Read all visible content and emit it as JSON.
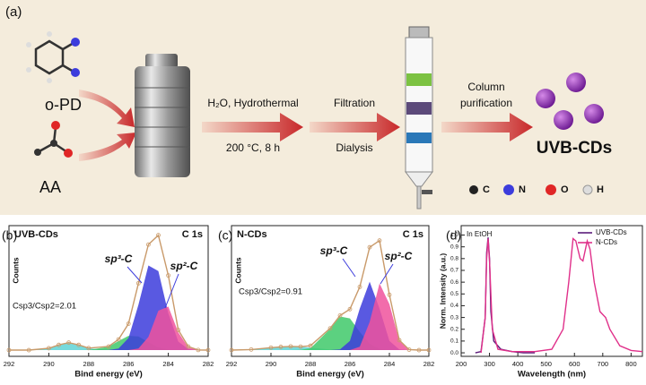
{
  "schematic": {
    "panel_label": "(a)",
    "reactants": [
      "o-PD",
      "AA"
    ],
    "step1": [
      "H₂O, Hydrothermal",
      "200 °C, 8 h"
    ],
    "step2": [
      "Filtration",
      "Dialysis"
    ],
    "step3": [
      "Column",
      "purification"
    ],
    "product": "UVB-CDs",
    "legend": [
      "C",
      "N",
      "O",
      "H"
    ]
  },
  "chart_data": [
    {
      "type": "line",
      "panel_label": "(b)",
      "title": "UVB-CDs",
      "subtitle": "C 1s",
      "xlabel": "Bind energy (eV)",
      "ylabel": "Counts",
      "ratio_label": "Csp3/Csp2=2.01",
      "annotations": [
        "sp³-C",
        "sp²-C"
      ],
      "x": [
        292,
        291,
        290,
        289.5,
        289,
        288.5,
        288,
        287,
        286.5,
        286,
        285.5,
        285,
        284.5,
        284,
        283.5,
        283,
        282.5,
        282
      ],
      "xlim": [
        292,
        282
      ],
      "xticks": [
        292,
        290,
        288,
        286,
        284,
        282
      ],
      "ylim": [
        0,
        1.05
      ],
      "series": [
        {
          "color": "#5fd3d6",
          "fill": true,
          "values": [
            0.05,
            0.05,
            0.065,
            0.092,
            0.11,
            0.092,
            0.065,
            0.05,
            0.05,
            0.05,
            0.05,
            0.05,
            0.05,
            0.05,
            0.05,
            0.05,
            0.05,
            0.05
          ]
        },
        {
          "color": "#3fc96a",
          "fill": true,
          "values": [
            0.05,
            0.05,
            0.05,
            0.05,
            0.05,
            0.05,
            0.051,
            0.078,
            0.123,
            0.165,
            0.16,
            0.113,
            0.071,
            0.054,
            0.05,
            0.05,
            0.05,
            0.05
          ]
        },
        {
          "color": "#3c3cdc",
          "fill": true,
          "values": [
            0.05,
            0.05,
            0.05,
            0.05,
            0.05,
            0.05,
            0.05,
            0.051,
            0.063,
            0.147,
            0.414,
            0.73,
            0.685,
            0.346,
            0.119,
            0.058,
            0.05,
            0.05
          ]
        },
        {
          "color": "#f0529c",
          "fill": true,
          "values": [
            0.05,
            0.05,
            0.05,
            0.05,
            0.05,
            0.05,
            0.05,
            0.05,
            0.05,
            0.05,
            0.063,
            0.155,
            0.367,
            0.4,
            0.193,
            0.071,
            0.051,
            0.05
          ]
        },
        {
          "color": "#c99a6a",
          "markers": true,
          "values": [
            0.05,
            0.05,
            0.065,
            0.092,
            0.11,
            0.092,
            0.066,
            0.079,
            0.136,
            0.262,
            0.587,
            0.898,
            0.973,
            0.65,
            0.212,
            0.079,
            0.051,
            0.05
          ]
        }
      ]
    },
    {
      "type": "line",
      "panel_label": "(c)",
      "title": "N-CDs",
      "subtitle": "C 1s",
      "xlabel": "Bind energy (eV)",
      "ylabel": "Counts",
      "ratio_label": "Csp3/Csp2=0.91",
      "annotations": [
        "sp³-C",
        "sp²-C"
      ],
      "x": [
        292,
        291,
        290,
        289.5,
        289,
        288.5,
        288,
        287,
        286.5,
        286,
        285.5,
        285,
        284.5,
        284,
        283.5,
        283,
        282.5,
        282
      ],
      "xlim": [
        292,
        282
      ],
      "xticks": [
        292,
        290,
        288,
        286,
        284,
        282
      ],
      "ylim": [
        0,
        1.05
      ],
      "series": [
        {
          "color": "#5fd3d6",
          "fill": true,
          "values": [
            0.05,
            0.055,
            0.07,
            0.076,
            0.08,
            0.076,
            0.07,
            0.055,
            0.052,
            0.05,
            0.05,
            0.05,
            0.05,
            0.05,
            0.05,
            0.05,
            0.05,
            0.05
          ]
        },
        {
          "color": "#3fc96a",
          "fill": true,
          "values": [
            0.05,
            0.05,
            0.05,
            0.05,
            0.05,
            0.052,
            0.065,
            0.22,
            0.32,
            0.305,
            0.196,
            0.1,
            0.06,
            0.05,
            0.05,
            0.05,
            0.05,
            0.05
          ]
        },
        {
          "color": "#3c3cdc",
          "fill": true,
          "values": [
            0.05,
            0.05,
            0.05,
            0.05,
            0.05,
            0.05,
            0.05,
            0.05,
            0.056,
            0.124,
            0.384,
            0.6,
            0.384,
            0.124,
            0.056,
            0.05,
            0.05,
            0.05
          ]
        },
        {
          "color": "#f0529c",
          "fill": true,
          "values": [
            0.05,
            0.05,
            0.05,
            0.05,
            0.05,
            0.05,
            0.05,
            0.05,
            0.05,
            0.05,
            0.078,
            0.276,
            0.586,
            0.42,
            0.124,
            0.054,
            0.05,
            0.05
          ]
        },
        {
          "color": "#c99a6a",
          "markers": true,
          "values": [
            0.05,
            0.055,
            0.07,
            0.076,
            0.08,
            0.078,
            0.085,
            0.225,
            0.328,
            0.379,
            0.558,
            0.876,
            0.93,
            0.494,
            0.13,
            0.054,
            0.05,
            0.05
          ]
        }
      ]
    },
    {
      "type": "line",
      "panel_label": "(d)",
      "title": "In EtOH",
      "xlabel": "Wavelength (nm)",
      "ylabel": "Norm. Intensity (a.u.)",
      "xlim": [
        200,
        840
      ],
      "xticks": [
        200,
        300,
        400,
        500,
        600,
        700,
        800
      ],
      "ylim": [
        -0.03,
        1.08
      ],
      "yticks": [
        {
          "value": 0,
          "label": "0.0"
        },
        0.1,
        0.2,
        0.3,
        0.4,
        0.5,
        0.6,
        0.7,
        0.8,
        0.9,
        {
          "value": 1,
          "label": "1.0"
        }
      ],
      "legend": "top-right",
      "series": [
        {
          "name": "UVB-CDs",
          "color": "#5b1b7a",
          "x": [
            250,
            270,
            285,
            290,
            295,
            300,
            305,
            315,
            340,
            380,
            420,
            460
          ],
          "values": [
            0,
            0.01,
            0.3,
            0.85,
            0.98,
            0.8,
            0.35,
            0.1,
            0.03,
            0.01,
            0,
            0
          ]
        },
        {
          "name": "N-CDs",
          "color": "#e0308a",
          "x": [
            270,
            285,
            290,
            295,
            300,
            310,
            330,
            380,
            460,
            520,
            560,
            580,
            595,
            605,
            620,
            630,
            645,
            655,
            670,
            690,
            710,
            725,
            760,
            800,
            840
          ],
          "values": [
            0,
            0.3,
            0.8,
            0.97,
            0.78,
            0.2,
            0.03,
            0.01,
            0.01,
            0.03,
            0.2,
            0.6,
            0.97,
            0.95,
            0.8,
            0.78,
            0.95,
            0.88,
            0.6,
            0.35,
            0.3,
            0.2,
            0.06,
            0.02,
            0.01
          ]
        }
      ]
    }
  ]
}
